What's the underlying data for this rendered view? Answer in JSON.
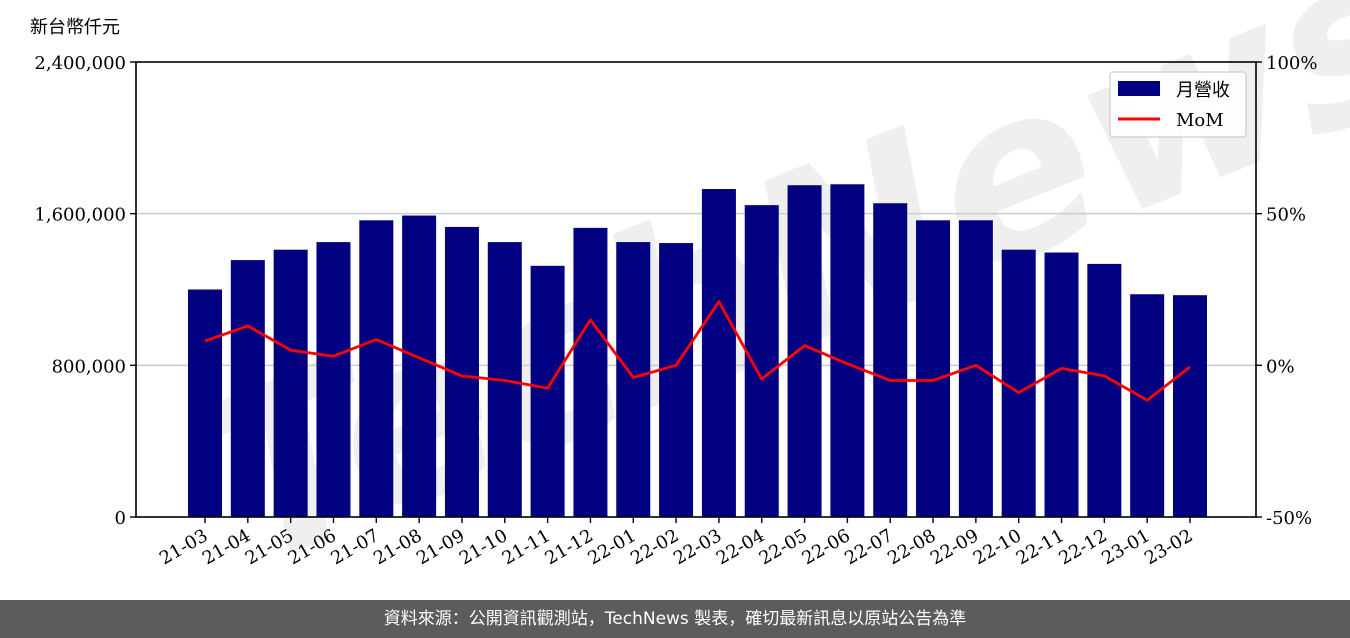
{
  "chart_data": {
    "type": "bar",
    "unit_label": "新台幣仟元",
    "categories": [
      "21-03",
      "21-04",
      "21-05",
      "21-06",
      "21-07",
      "21-08",
      "21-09",
      "21-10",
      "21-11",
      "21-12",
      "22-01",
      "22-02",
      "22-03",
      "22-04",
      "22-05",
      "22-06",
      "22-07",
      "22-08",
      "22-09",
      "22-10",
      "22-11",
      "22-12",
      "23-01",
      "23-02"
    ],
    "series": [
      {
        "name": "月營收",
        "axis": "left",
        "color": "#000080",
        "values": [
          1200000,
          1355000,
          1410000,
          1450000,
          1565000,
          1590000,
          1530000,
          1450000,
          1325000,
          1525000,
          1450000,
          1445000,
          1730000,
          1645000,
          1750000,
          1755000,
          1655000,
          1565000,
          1565000,
          1410000,
          1395000,
          1335000,
          1175000,
          1170000
        ]
      },
      {
        "name": "MoM",
        "axis": "right",
        "color": "#ff0000",
        "values": [
          8,
          13,
          5,
          3,
          8.5,
          2.5,
          -3.5,
          -5,
          -7.5,
          15,
          -4,
          0,
          21,
          -4.5,
          6.5,
          0.5,
          -5,
          -5,
          0,
          -9,
          -1,
          -3.5,
          -11.5,
          -0.5
        ]
      }
    ],
    "ylim_left": [
      0,
      2400000
    ],
    "yticks_left": [
      "0",
      "800,000",
      "1,600,000",
      "2,400,000"
    ],
    "yticks_left_values": [
      0,
      800000,
      1600000,
      2400000
    ],
    "ylim_right": [
      -50,
      100
    ],
    "yticks_right": [
      "-50%",
      "0%",
      "50%",
      "100%"
    ],
    "yticks_right_values": [
      -50,
      0,
      50,
      100
    ],
    "grid": "horizontal",
    "legend_position": "top-right"
  },
  "watermark": "TechNews",
  "footer": "資料來源：公開資訊觀測站，TechNews 製表，確切最新訊息以原站公告為準"
}
